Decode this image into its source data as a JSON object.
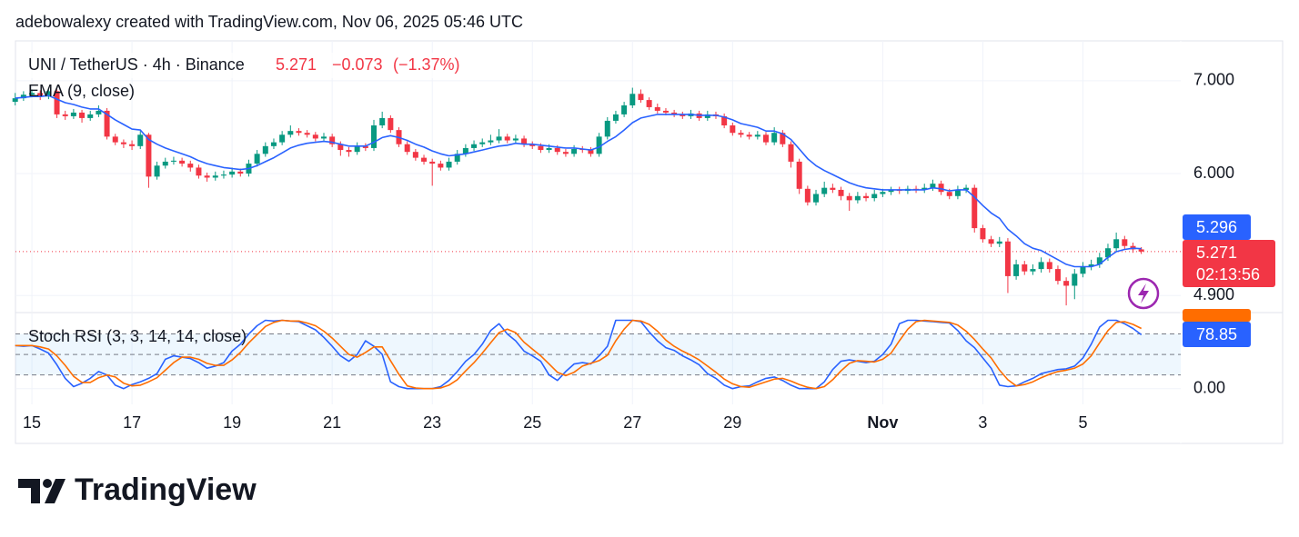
{
  "header": "adebowalexy created with TradingView.com, Nov 06, 2025 05:46 UTC",
  "logo_text": "TradingView",
  "chart_data": {
    "type": "candlestick",
    "symbol": "UNI / TetherUS · 4h · Binance",
    "change": "−0.073",
    "change_pct": "(−1.37%)",
    "countdown": "02:13:56",
    "up_color": "#089981",
    "down_color": "#f23645",
    "log_scale": true,
    "grid": true,
    "ylim": [
      4.77,
      7.48
    ],
    "yticks": [
      {
        "value": 7,
        "label": "7.000"
      },
      {
        "value": 6,
        "label": "6.000"
      },
      {
        "value": 4.9,
        "label": "4.900"
      }
    ],
    "categories": [
      null,
      null,
      "15",
      null,
      null,
      null,
      null,
      null,
      null,
      null,
      null,
      null,
      null,
      null,
      "17",
      null,
      null,
      null,
      null,
      null,
      null,
      null,
      null,
      null,
      null,
      null,
      "19",
      null,
      null,
      null,
      null,
      null,
      null,
      null,
      null,
      null,
      null,
      null,
      "21",
      null,
      null,
      null,
      null,
      null,
      null,
      null,
      null,
      null,
      null,
      null,
      "23",
      null,
      null,
      null,
      null,
      null,
      null,
      null,
      null,
      null,
      null,
      null,
      "25",
      null,
      null,
      null,
      null,
      null,
      null,
      null,
      null,
      null,
      null,
      null,
      "27",
      null,
      null,
      null,
      null,
      null,
      null,
      null,
      null,
      null,
      null,
      null,
      "29",
      null,
      null,
      null,
      null,
      null,
      null,
      null,
      null,
      null,
      null,
      null,
      null,
      null,
      null,
      null,
      null,
      null,
      "Nov",
      null,
      null,
      null,
      null,
      null,
      null,
      null,
      null,
      null,
      null,
      null,
      "3",
      null,
      null,
      null,
      null,
      null,
      null,
      null,
      null,
      null,
      null,
      null,
      "5",
      null,
      null,
      null,
      null,
      null,
      null,
      null
    ],
    "ohlc": [
      [
        6.76,
        6.86,
        6.72,
        6.8
      ],
      [
        6.8,
        6.88,
        6.77,
        6.84
      ],
      [
        6.84,
        6.9,
        6.81,
        6.86
      ],
      [
        6.86,
        6.89,
        6.78,
        6.82
      ],
      [
        6.82,
        6.92,
        6.79,
        6.88
      ],
      [
        6.88,
        6.9,
        6.58,
        6.62
      ],
      [
        6.62,
        6.66,
        6.56,
        6.6
      ],
      [
        6.6,
        6.68,
        6.57,
        6.64
      ],
      [
        6.64,
        6.67,
        6.53,
        6.58
      ],
      [
        6.58,
        6.66,
        6.55,
        6.62
      ],
      [
        6.62,
        6.72,
        6.59,
        6.66
      ],
      [
        6.66,
        6.69,
        6.35,
        6.38
      ],
      [
        6.38,
        6.41,
        6.29,
        6.32
      ],
      [
        6.32,
        6.35,
        6.26,
        6.3
      ],
      [
        6.3,
        6.34,
        6.24,
        6.28
      ],
      [
        6.28,
        6.44,
        6.25,
        6.4
      ],
      [
        6.4,
        6.42,
        5.86,
        5.97
      ],
      [
        5.97,
        6.12,
        5.94,
        6.08
      ],
      [
        6.08,
        6.16,
        6.05,
        6.12
      ],
      [
        6.12,
        6.17,
        6.09,
        6.13
      ],
      [
        6.13,
        6.16,
        6.07,
        6.1
      ],
      [
        6.1,
        6.13,
        6.02,
        6.06
      ],
      [
        6.06,
        6.09,
        5.95,
        5.98
      ],
      [
        5.98,
        6.01,
        5.92,
        5.96
      ],
      [
        5.96,
        6.02,
        5.93,
        5.98
      ],
      [
        5.98,
        6.03,
        5.95,
        5.99
      ],
      [
        5.99,
        6.06,
        5.96,
        6.02
      ],
      [
        6.02,
        6.05,
        5.97,
        6.0
      ],
      [
        6.0,
        6.14,
        5.97,
        6.1
      ],
      [
        6.1,
        6.24,
        6.07,
        6.2
      ],
      [
        6.2,
        6.32,
        6.17,
        6.28
      ],
      [
        6.28,
        6.36,
        6.25,
        6.32
      ],
      [
        6.32,
        6.44,
        6.29,
        6.4
      ],
      [
        6.4,
        6.5,
        6.37,
        6.44
      ],
      [
        6.44,
        6.47,
        6.39,
        6.42
      ],
      [
        6.42,
        6.45,
        6.37,
        6.4
      ],
      [
        6.4,
        6.43,
        6.33,
        6.36
      ],
      [
        6.36,
        6.42,
        6.33,
        6.38
      ],
      [
        6.38,
        6.41,
        6.27,
        6.3
      ],
      [
        6.3,
        6.33,
        6.18,
        6.24
      ],
      [
        6.24,
        6.27,
        6.17,
        6.22
      ],
      [
        6.22,
        6.32,
        6.19,
        6.28
      ],
      [
        6.28,
        6.31,
        6.23,
        6.26
      ],
      [
        6.26,
        6.56,
        6.23,
        6.5
      ],
      [
        6.5,
        6.65,
        6.47,
        6.58
      ],
      [
        6.58,
        6.61,
        6.42,
        6.45
      ],
      [
        6.45,
        6.48,
        6.27,
        6.3
      ],
      [
        6.3,
        6.33,
        6.19,
        6.22
      ],
      [
        6.22,
        6.25,
        6.13,
        6.16
      ],
      [
        6.16,
        6.19,
        6.09,
        6.12
      ],
      [
        6.12,
        6.15,
        5.88,
        6.1
      ],
      [
        6.1,
        6.13,
        6.03,
        6.06
      ],
      [
        6.06,
        6.16,
        6.03,
        6.12
      ],
      [
        6.12,
        6.24,
        6.09,
        6.2
      ],
      [
        6.2,
        6.3,
        6.17,
        6.26
      ],
      [
        6.26,
        6.34,
        6.23,
        6.3
      ],
      [
        6.3,
        6.36,
        6.27,
        6.32
      ],
      [
        6.32,
        6.4,
        6.29,
        6.34
      ],
      [
        6.34,
        6.46,
        6.31,
        6.38
      ],
      [
        6.38,
        6.41,
        6.31,
        6.34
      ],
      [
        6.34,
        6.4,
        6.31,
        6.36
      ],
      [
        6.36,
        6.39,
        6.27,
        6.3
      ],
      [
        6.3,
        6.33,
        6.25,
        6.28
      ],
      [
        6.28,
        6.31,
        6.21,
        6.24
      ],
      [
        6.24,
        6.3,
        6.21,
        6.26
      ],
      [
        6.26,
        6.29,
        6.19,
        6.22
      ],
      [
        6.22,
        6.25,
        6.17,
        6.2
      ],
      [
        6.2,
        6.29,
        6.17,
        6.25
      ],
      [
        6.25,
        6.28,
        6.21,
        6.24
      ],
      [
        6.24,
        6.27,
        6.17,
        6.2
      ],
      [
        6.2,
        6.42,
        6.17,
        6.38
      ],
      [
        6.38,
        6.59,
        6.35,
        6.55
      ],
      [
        6.55,
        6.66,
        6.52,
        6.62
      ],
      [
        6.62,
        6.76,
        6.59,
        6.72
      ],
      [
        6.72,
        6.92,
        6.69,
        6.85
      ],
      [
        6.85,
        6.9,
        6.75,
        6.78
      ],
      [
        6.78,
        6.81,
        6.67,
        6.7
      ],
      [
        6.7,
        6.74,
        6.63,
        6.66
      ],
      [
        6.66,
        6.69,
        6.61,
        6.64
      ],
      [
        6.64,
        6.67,
        6.59,
        6.62
      ],
      [
        6.62,
        6.65,
        6.57,
        6.6
      ],
      [
        6.6,
        6.67,
        6.57,
        6.63
      ],
      [
        6.63,
        6.66,
        6.55,
        6.58
      ],
      [
        6.58,
        6.66,
        6.55,
        6.62
      ],
      [
        6.62,
        6.65,
        6.57,
        6.6
      ],
      [
        6.6,
        6.63,
        6.47,
        6.5
      ],
      [
        6.5,
        6.53,
        6.39,
        6.42
      ],
      [
        6.42,
        6.45,
        6.37,
        6.4
      ],
      [
        6.4,
        6.43,
        6.35,
        6.38
      ],
      [
        6.38,
        6.44,
        6.35,
        6.4
      ],
      [
        6.4,
        6.43,
        6.29,
        6.32
      ],
      [
        6.32,
        6.48,
        6.29,
        6.42
      ],
      [
        6.42,
        6.45,
        6.27,
        6.3
      ],
      [
        6.3,
        6.33,
        6.06,
        6.12
      ],
      [
        6.12,
        6.15,
        5.8,
        5.85
      ],
      [
        5.85,
        5.88,
        5.69,
        5.72
      ],
      [
        5.72,
        5.84,
        5.69,
        5.8
      ],
      [
        5.8,
        5.92,
        5.77,
        5.86
      ],
      [
        5.86,
        5.9,
        5.81,
        5.84
      ],
      [
        5.84,
        5.87,
        5.74,
        5.78
      ],
      [
        5.78,
        5.81,
        5.64,
        5.74
      ],
      [
        5.74,
        5.82,
        5.71,
        5.78
      ],
      [
        5.78,
        5.81,
        5.73,
        5.76
      ],
      [
        5.76,
        5.84,
        5.73,
        5.8
      ],
      [
        5.8,
        5.85,
        5.77,
        5.82
      ],
      [
        5.82,
        5.87,
        5.79,
        5.84
      ],
      [
        5.84,
        5.87,
        5.8,
        5.83
      ],
      [
        5.83,
        5.88,
        5.8,
        5.85
      ],
      [
        5.85,
        5.88,
        5.81,
        5.84
      ],
      [
        5.84,
        5.9,
        5.81,
        5.86
      ],
      [
        5.86,
        5.94,
        5.83,
        5.9
      ],
      [
        5.9,
        5.93,
        5.79,
        5.82
      ],
      [
        5.82,
        5.85,
        5.75,
        5.78
      ],
      [
        5.78,
        5.88,
        5.75,
        5.84
      ],
      [
        5.84,
        5.89,
        5.81,
        5.86
      ],
      [
        5.86,
        5.89,
        5.44,
        5.48
      ],
      [
        5.48,
        5.51,
        5.35,
        5.38
      ],
      [
        5.38,
        5.41,
        5.31,
        5.34
      ],
      [
        5.34,
        5.4,
        5.31,
        5.36
      ],
      [
        5.36,
        5.39,
        4.92,
        5.06
      ],
      [
        5.06,
        5.2,
        5.03,
        5.16
      ],
      [
        5.16,
        5.19,
        5.07,
        5.1
      ],
      [
        5.1,
        5.16,
        5.07,
        5.12
      ],
      [
        5.12,
        5.22,
        5.09,
        5.18
      ],
      [
        5.18,
        5.21,
        5.09,
        5.12
      ],
      [
        5.12,
        5.15,
        4.99,
        5.02
      ],
      [
        5.02,
        5.05,
        4.82,
        4.98
      ],
      [
        4.98,
        5.12,
        4.87,
        5.08
      ],
      [
        5.08,
        5.18,
        5.05,
        5.14
      ],
      [
        5.14,
        5.2,
        5.11,
        5.16
      ],
      [
        5.16,
        5.26,
        5.13,
        5.22
      ],
      [
        5.22,
        5.34,
        5.19,
        5.3
      ],
      [
        5.3,
        5.44,
        5.27,
        5.38
      ],
      [
        5.38,
        5.41,
        5.29,
        5.32
      ],
      [
        5.32,
        5.35,
        5.26,
        5.29
      ],
      [
        5.29,
        5.31,
        5.25,
        5.271
      ]
    ],
    "series": [
      {
        "name": "EMA (9, close)",
        "color": "#2962ff",
        "values": [
          6.8,
          6.81,
          6.82,
          6.82,
          6.83,
          6.79,
          6.75,
          6.73,
          6.7,
          6.68,
          6.68,
          6.62,
          6.56,
          6.51,
          6.46,
          6.45,
          6.35,
          6.3,
          6.26,
          6.23,
          6.2,
          6.17,
          6.13,
          6.1,
          6.08,
          6.06,
          6.05,
          6.04,
          6.05,
          6.08,
          6.12,
          6.16,
          6.21,
          6.26,
          6.29,
          6.31,
          6.32,
          6.33,
          6.32,
          6.3,
          6.28,
          6.28,
          6.28,
          6.32,
          6.37,
          6.39,
          6.37,
          6.34,
          6.3,
          6.27,
          6.23,
          6.2,
          6.18,
          6.19,
          6.2,
          6.22,
          6.24,
          6.26,
          6.28,
          6.29,
          6.31,
          6.3,
          6.3,
          6.29,
          6.28,
          6.27,
          6.26,
          6.26,
          6.25,
          6.24,
          6.27,
          6.33,
          6.38,
          6.45,
          6.53,
          6.58,
          6.6,
          6.62,
          6.62,
          6.62,
          6.62,
          6.62,
          6.61,
          6.61,
          6.61,
          6.59,
          6.56,
          6.52,
          6.5,
          6.48,
          6.44,
          6.44,
          6.41,
          6.35,
          6.25,
          6.15,
          6.08,
          6.03,
          5.99,
          5.95,
          5.91,
          5.88,
          5.86,
          5.85,
          5.84,
          5.84,
          5.84,
          5.84,
          5.84,
          5.84,
          5.86,
          5.85,
          5.83,
          5.84,
          5.84,
          5.77,
          5.69,
          5.62,
          5.57,
          5.47,
          5.41,
          5.34,
          5.3,
          5.28,
          5.24,
          5.2,
          5.16,
          5.14,
          5.14,
          5.14,
          5.16,
          5.22,
          5.27,
          5.29,
          5.3,
          5.296
        ]
      }
    ],
    "indicator": {
      "name": "Stoch RSI (3, 3, 14, 14, close)",
      "ylim": [
        -23,
        110
      ],
      "yticks": [
        {
          "value": 0,
          "label": "0.00"
        }
      ],
      "levels": [
        80,
        50,
        20
      ],
      "series": [
        {
          "color": "#2962ff",
          "values": [
            63,
            62,
            63,
            58,
            52,
            35,
            15,
            3,
            8,
            15,
            25,
            20,
            5,
            0,
            6,
            10,
            15,
            22,
            43,
            48,
            46,
            44,
            38,
            30,
            33,
            38,
            55,
            65,
            80,
            92,
            100,
            99,
            100,
            99,
            98,
            92,
            86,
            75,
            62,
            48,
            40,
            50,
            70,
            62,
            50,
            10,
            3,
            0,
            0,
            0,
            0,
            3,
            12,
            25,
            40,
            50,
            65,
            85,
            95,
            80,
            70,
            55,
            48,
            40,
            20,
            12,
            25,
            36,
            38,
            36,
            48,
            62,
            100,
            100,
            100,
            98,
            83,
            70,
            60,
            56,
            48,
            42,
            35,
            22,
            15,
            5,
            0,
            3,
            4,
            10,
            15,
            17,
            12,
            5,
            0,
            0,
            0,
            10,
            28,
            40,
            42,
            40,
            38,
            40,
            50,
            65,
            95,
            100,
            100,
            99,
            98,
            97,
            96,
            85,
            70,
            60,
            45,
            30,
            5,
            3,
            4,
            10,
            15,
            22,
            25,
            28,
            29,
            33,
            45,
            65,
            90,
            100,
            100,
            95,
            88,
            78.85
          ]
        },
        {
          "color": "#ff6d00",
          "values": [
            63,
            63,
            63,
            61,
            58,
            48,
            34,
            18,
            9,
            9,
            16,
            20,
            17,
            8,
            4,
            5,
            10,
            16,
            27,
            38,
            46,
            46,
            43,
            37,
            34,
            34,
            42,
            53,
            67,
            79,
            91,
            97,
            100,
            99,
            99,
            96,
            92,
            84,
            74,
            62,
            50,
            46,
            53,
            61,
            61,
            41,
            21,
            4,
            1,
            0,
            0,
            1,
            5,
            13,
            26,
            38,
            52,
            67,
            82,
            87,
            82,
            68,
            58,
            48,
            36,
            24,
            19,
            24,
            33,
            37,
            41,
            49,
            70,
            87,
            100,
            99,
            94,
            84,
            71,
            62,
            55,
            49,
            42,
            33,
            24,
            14,
            7,
            3,
            2,
            6,
            10,
            14,
            15,
            11,
            6,
            2,
            0,
            3,
            13,
            26,
            37,
            41,
            40,
            39,
            43,
            52,
            70,
            87,
            98,
            100,
            99,
            98,
            97,
            93,
            84,
            72,
            58,
            45,
            27,
            13,
            4,
            6,
            10,
            16,
            21,
            25,
            27,
            30,
            36,
            48,
            67,
            85,
            97,
            98,
            94,
            88
          ]
        }
      ]
    }
  }
}
